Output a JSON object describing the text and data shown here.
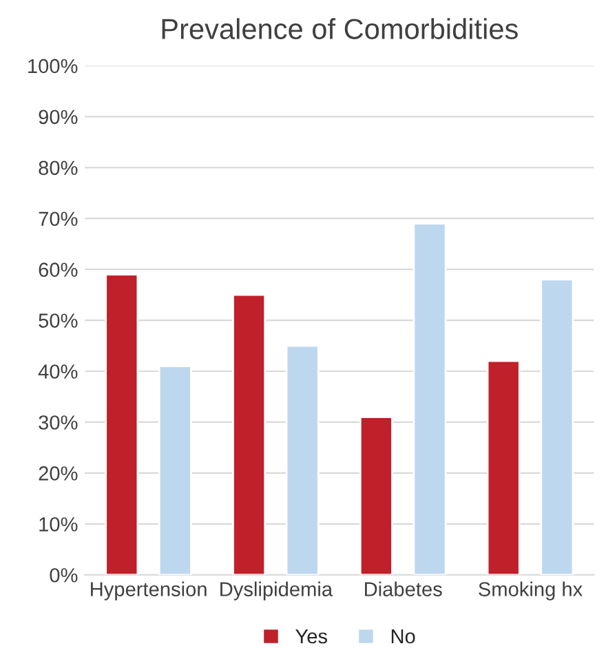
{
  "chart_data": {
    "type": "bar",
    "title": "Prevalence of Comorbidities",
    "categories": [
      "Hypertension",
      "Dyslipidemia",
      "Diabetes",
      "Smoking hx"
    ],
    "series": [
      {
        "name": "Yes",
        "color": "#c0202a",
        "values": [
          59,
          55,
          31,
          42
        ]
      },
      {
        "name": "No",
        "color": "#bdd7ee",
        "values": [
          41,
          45,
          69,
          58
        ]
      }
    ],
    "ylim": [
      0,
      100
    ],
    "yticks": [
      {
        "value": 0,
        "label": "0%"
      },
      {
        "value": 10,
        "label": "10%"
      },
      {
        "value": 20,
        "label": "20%"
      },
      {
        "value": 30,
        "label": "30%"
      },
      {
        "value": 40,
        "label": "40%"
      },
      {
        "value": 50,
        "label": "50%"
      },
      {
        "value": 60,
        "label": "60%"
      },
      {
        "value": 70,
        "label": "70%"
      },
      {
        "value": 80,
        "label": "80%"
      },
      {
        "value": 90,
        "label": "90%"
      },
      {
        "value": 100,
        "label": "100%"
      }
    ],
    "grid": "y",
    "legend": "bottom"
  }
}
